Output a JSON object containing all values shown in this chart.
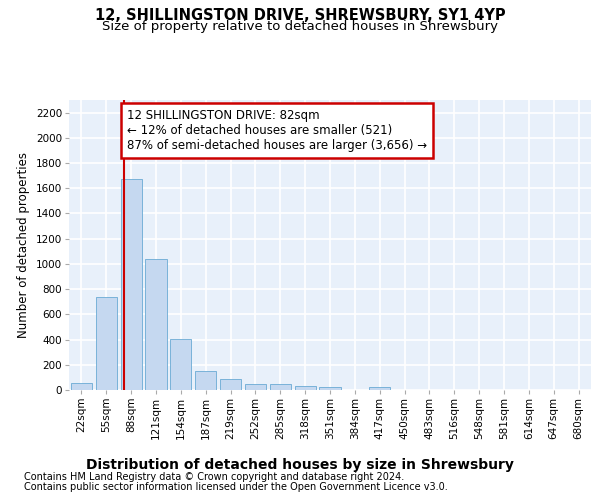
{
  "title1": "12, SHILLINGSTON DRIVE, SHREWSBURY, SY1 4YP",
  "title2": "Size of property relative to detached houses in Shrewsbury",
  "xlabel": "Distribution of detached houses by size in Shrewsbury",
  "ylabel": "Number of detached properties",
  "footer1": "Contains HM Land Registry data © Crown copyright and database right 2024.",
  "footer2": "Contains public sector information licensed under the Open Government Licence v3.0.",
  "categories": [
    "22sqm",
    "55sqm",
    "88sqm",
    "121sqm",
    "154sqm",
    "187sqm",
    "219sqm",
    "252sqm",
    "285sqm",
    "318sqm",
    "351sqm",
    "384sqm",
    "417sqm",
    "450sqm",
    "483sqm",
    "516sqm",
    "548sqm",
    "581sqm",
    "614sqm",
    "647sqm",
    "680sqm"
  ],
  "values": [
    55,
    740,
    1670,
    1040,
    405,
    150,
    85,
    50,
    45,
    30,
    25,
    0,
    20,
    0,
    0,
    0,
    0,
    0,
    0,
    0,
    0
  ],
  "bar_color": "#c5d8f0",
  "bar_edge_color": "#6aaad4",
  "background_color": "#e8f0fa",
  "grid_color": "#ffffff",
  "vline_color": "#cc0000",
  "vline_pos": 1.72,
  "annotation_text": "12 SHILLINGSTON DRIVE: 82sqm\n← 12% of detached houses are smaller (521)\n87% of semi-detached houses are larger (3,656) →",
  "annotation_box_color": "#cc0000",
  "ylim": [
    0,
    2300
  ],
  "yticks": [
    0,
    200,
    400,
    600,
    800,
    1000,
    1200,
    1400,
    1600,
    1800,
    2000,
    2200
  ],
  "title1_fontsize": 10.5,
  "title2_fontsize": 9.5,
  "xlabel_fontsize": 10,
  "ylabel_fontsize": 8.5,
  "tick_fontsize": 7.5,
  "annotation_fontsize": 8.5,
  "footer_fontsize": 7
}
